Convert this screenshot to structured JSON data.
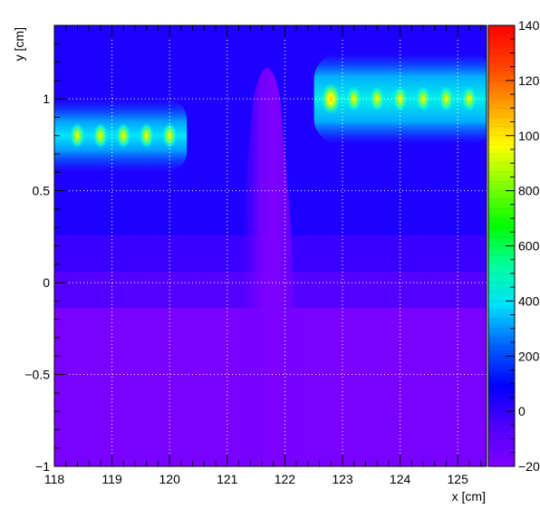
{
  "chart_data": {
    "type": "heatmap",
    "xlabel": "x [cm]",
    "ylabel": "y [cm]",
    "xlim": [
      118,
      125.5
    ],
    "ylim": [
      -1,
      1.4
    ],
    "x_ticks": [
      118,
      119,
      120,
      121,
      122,
      123,
      124,
      125
    ],
    "x_tick_labels": [
      "118",
      "119",
      "120",
      "121",
      "122",
      "123",
      "124",
      "125"
    ],
    "y_ticks": [
      -1,
      -0.5,
      0,
      0.5,
      1
    ],
    "y_tick_labels": [
      "−1",
      "−0.5",
      "0",
      "0.5",
      "1"
    ],
    "grid": true,
    "colorbar": {
      "range": [
        -200,
        1400
      ],
      "ticks": [
        -200,
        0,
        200,
        400,
        600,
        800,
        1000,
        1200,
        1400
      ],
      "tick_labels": [
        "−200",
        "0",
        "200",
        "400",
        "600",
        "800",
        "1000",
        "1200",
        "1400"
      ],
      "stops": [
        "#8000ff",
        "#5000ff",
        "#0000ff",
        "#0060ff",
        "#00e0ff",
        "#00ffa0",
        "#00ff00",
        "#80ff00",
        "#ffff00",
        "#ffa000",
        "#ff4000",
        "#ff0000"
      ]
    },
    "regions": [
      {
        "name": "background-upper",
        "value": 20
      },
      {
        "name": "background-lower",
        "value": -150
      },
      {
        "name": "hot-band-left",
        "x_range": [
          118,
          120.3
        ],
        "y_center": 0.8,
        "value": 380
      },
      {
        "name": "hot-band-right",
        "x_range": [
          122.6,
          125.5
        ],
        "y_center": 1.0,
        "value": 430
      },
      {
        "name": "plume",
        "x_center": 121.7,
        "y_range": [
          -1,
          1.3
        ],
        "value": -180
      }
    ],
    "hotspots": [
      {
        "x": 118.4,
        "y": 0.8,
        "value": 700
      },
      {
        "x": 118.8,
        "y": 0.8,
        "value": 700
      },
      {
        "x": 119.2,
        "y": 0.8,
        "value": 700
      },
      {
        "x": 119.6,
        "y": 0.8,
        "value": 700
      },
      {
        "x": 120.0,
        "y": 0.8,
        "value": 800
      },
      {
        "x": 122.8,
        "y": 1.0,
        "value": 1000
      },
      {
        "x": 123.2,
        "y": 1.0,
        "value": 850
      },
      {
        "x": 123.6,
        "y": 1.0,
        "value": 800
      },
      {
        "x": 124.0,
        "y": 1.0,
        "value": 800
      },
      {
        "x": 124.4,
        "y": 1.0,
        "value": 800
      },
      {
        "x": 124.8,
        "y": 1.0,
        "value": 800
      },
      {
        "x": 125.2,
        "y": 1.0,
        "value": 800
      }
    ]
  }
}
